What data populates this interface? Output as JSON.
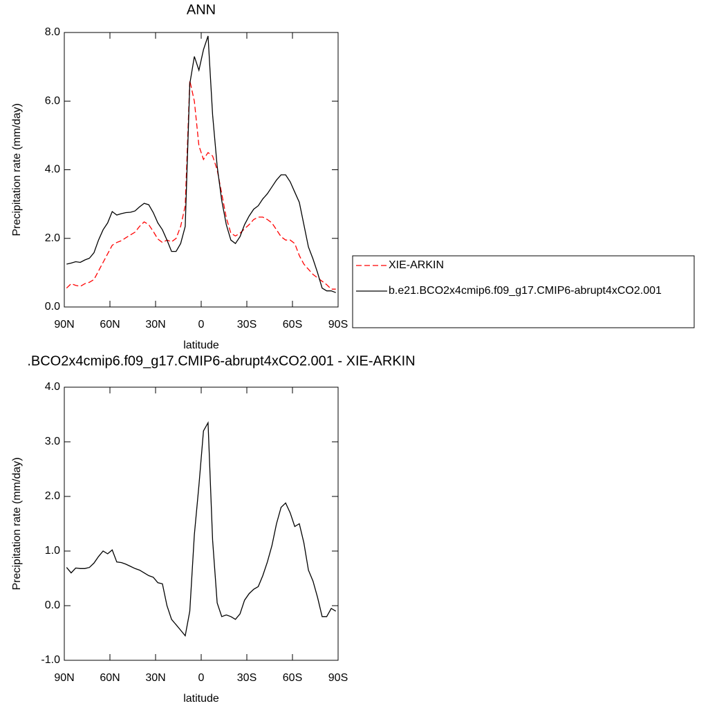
{
  "chart_data": [
    {
      "type": "line",
      "title": "ANN",
      "x_label": "latitude",
      "y_label": "Precipitation rate (mm/day)",
      "x": [
        88.5,
        85.5,
        82.5,
        79.5,
        76.5,
        73.5,
        70.5,
        67.5,
        64.5,
        61.5,
        58.5,
        55.5,
        52.5,
        49.5,
        46.5,
        43.5,
        40.5,
        37.5,
        34.5,
        31.5,
        28.5,
        25.5,
        22.5,
        19.5,
        16.5,
        13.5,
        10.5,
        7.5,
        4.5,
        1.5,
        -1.5,
        -4.5,
        -7.5,
        -10.5,
        -13.5,
        -16.5,
        -19.5,
        -22.5,
        -25.5,
        -28.5,
        -31.5,
        -34.5,
        -37.5,
        -40.5,
        -43.5,
        -46.5,
        -49.5,
        -52.5,
        -55.5,
        -58.5,
        -61.5,
        -64.5,
        -67.5,
        -70.5,
        -73.5,
        -76.5,
        -79.5,
        -82.5,
        -85.5,
        -88.5
      ],
      "series": [
        {
          "name": "XIE-ARKIN",
          "color": "#ff0000",
          "line_style": "dashed",
          "values": [
            0.55,
            0.68,
            0.63,
            0.6,
            0.68,
            0.72,
            0.8,
            1.05,
            1.3,
            1.55,
            1.8,
            1.88,
            1.93,
            2.02,
            2.1,
            2.18,
            2.35,
            2.48,
            2.4,
            2.2,
            1.98,
            1.88,
            1.95,
            1.9,
            2.0,
            2.35,
            2.95,
            6.6,
            6.0,
            4.7,
            4.3,
            4.5,
            4.4,
            4.0,
            3.3,
            2.6,
            2.15,
            2.07,
            2.15,
            2.28,
            2.4,
            2.55,
            2.62,
            2.62,
            2.55,
            2.45,
            2.25,
            2.05,
            1.95,
            1.95,
            1.85,
            1.5,
            1.25,
            1.1,
            0.95,
            0.85,
            0.75,
            0.65,
            0.52,
            0.52
          ]
        },
        {
          "name": "b.e21.BCO2x4cmip6.f09_g17.CMIP6-abrupt4xCO2.001",
          "color": "#000000",
          "line_style": "solid",
          "values": [
            1.25,
            1.28,
            1.32,
            1.3,
            1.37,
            1.42,
            1.58,
            1.95,
            2.25,
            2.45,
            2.78,
            2.68,
            2.72,
            2.75,
            2.76,
            2.8,
            2.92,
            3.02,
            2.98,
            2.75,
            2.45,
            2.25,
            1.95,
            1.62,
            1.62,
            1.85,
            2.35,
            6.5,
            7.3,
            6.9,
            7.5,
            7.9,
            5.6,
            4.1,
            3.1,
            2.4,
            1.95,
            1.85,
            2.05,
            2.4,
            2.65,
            2.85,
            2.95,
            3.15,
            3.3,
            3.5,
            3.7,
            3.85,
            3.85,
            3.65,
            3.35,
            3.05,
            2.4,
            1.75,
            1.4,
            1.0,
            0.55,
            0.47,
            0.47,
            0.42
          ]
        }
      ],
      "xlim": [
        90,
        -90
      ],
      "xticks": [
        {
          "value": 90,
          "label": "90N"
        },
        {
          "value": 60,
          "label": "60N"
        },
        {
          "value": 30,
          "label": "30N"
        },
        0,
        {
          "value": -30,
          "label": "30S"
        },
        {
          "value": -60,
          "label": "60S"
        },
        {
          "value": -90,
          "label": "90S"
        }
      ],
      "ylim": [
        0,
        8
      ],
      "yticks": [
        {
          "value": 0,
          "label": "0.0"
        },
        {
          "value": 2,
          "label": "2.0"
        },
        {
          "value": 4,
          "label": "4.0"
        },
        {
          "value": 6,
          "label": "6.0"
        },
        {
          "value": 8,
          "label": "8.0"
        }
      ],
      "legend": "right"
    },
    {
      "type": "line",
      "title": ".BCO2x4cmip6.f09_g17.CMIP6-abrupt4xCO2.001 - XIE-ARKIN",
      "x_label": "latitude",
      "y_label": "Precipitation rate (mm/day)",
      "x": [
        88.5,
        85.5,
        82.5,
        79.5,
        76.5,
        73.5,
        70.5,
        67.5,
        64.5,
        61.5,
        58.5,
        55.5,
        52.5,
        49.5,
        46.5,
        43.5,
        40.5,
        37.5,
        34.5,
        31.5,
        28.5,
        25.5,
        22.5,
        19.5,
        16.5,
        13.5,
        10.5,
        7.5,
        4.5,
        1.5,
        -1.5,
        -4.5,
        -7.5,
        -10.5,
        -13.5,
        -16.5,
        -19.5,
        -22.5,
        -25.5,
        -28.5,
        -31.5,
        -34.5,
        -37.5,
        -40.5,
        -43.5,
        -46.5,
        -49.5,
        -52.5,
        -55.5,
        -58.5,
        -61.5,
        -64.5,
        -67.5,
        -70.5,
        -73.5,
        -76.5,
        -79.5,
        -82.5,
        -85.5,
        -88.5
      ],
      "color": "#000000",
      "values": [
        0.7,
        0.6,
        0.69,
        0.68,
        0.68,
        0.7,
        0.78,
        0.9,
        1.0,
        0.95,
        1.02,
        0.8,
        0.79,
        0.76,
        0.72,
        0.68,
        0.65,
        0.6,
        0.55,
        0.52,
        0.42,
        0.4,
        0.0,
        -0.25,
        -0.35,
        -0.45,
        -0.55,
        -0.1,
        1.3,
        2.2,
        3.2,
        3.35,
        1.2,
        0.05,
        -0.2,
        -0.17,
        -0.2,
        -0.25,
        -0.15,
        0.1,
        0.22,
        0.3,
        0.35,
        0.55,
        0.8,
        1.1,
        1.5,
        1.8,
        1.88,
        1.7,
        1.45,
        1.5,
        1.15,
        0.65,
        0.45,
        0.15,
        -0.2,
        -0.2,
        -0.05,
        -0.1
      ],
      "xlim": [
        90,
        -90
      ],
      "xticks": [
        {
          "value": 90,
          "label": "90N"
        },
        {
          "value": 60,
          "label": "60N"
        },
        {
          "value": 30,
          "label": "30N"
        },
        0,
        {
          "value": -30,
          "label": "30S"
        },
        {
          "value": -60,
          "label": "60S"
        },
        {
          "value": -90,
          "label": "90S"
        }
      ],
      "ylim": [
        -1,
        4
      ],
      "yticks": [
        {
          "value": -1,
          "label": "-1.0"
        },
        {
          "value": 0,
          "label": "0.0"
        },
        {
          "value": 1,
          "label": "1.0"
        },
        {
          "value": 2,
          "label": "2.0"
        },
        {
          "value": 3,
          "label": "3.0"
        },
        {
          "value": 4,
          "label": "4.0"
        }
      ]
    }
  ]
}
